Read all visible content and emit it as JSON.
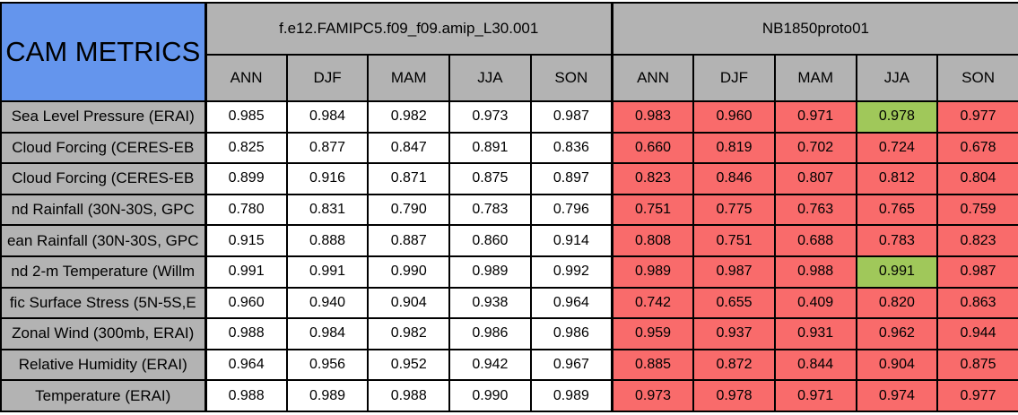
{
  "chart_data": {
    "type": "table",
    "title": "CAM METRICS",
    "models": [
      "f.e12.FAMIPC5.f09_f09.amip_L30.001",
      "NB1850proto01"
    ],
    "seasons": [
      "ANN",
      "DJF",
      "MAM",
      "JJA",
      "SON"
    ],
    "rows": [
      {
        "label": "Sea Level Pressure (ERAI)",
        "model1": [
          "0.985",
          "0.984",
          "0.982",
          "0.973",
          "0.987"
        ],
        "model2": [
          "0.983",
          "0.960",
          "0.971",
          "0.978",
          "0.977"
        ],
        "model2_green": [
          3
        ]
      },
      {
        "label": "Cloud Forcing (CERES-EB",
        "model1": [
          "0.825",
          "0.877",
          "0.847",
          "0.891",
          "0.836"
        ],
        "model2": [
          "0.660",
          "0.819",
          "0.702",
          "0.724",
          "0.678"
        ],
        "model2_green": []
      },
      {
        "label": "Cloud Forcing (CERES-EB",
        "model1": [
          "0.899",
          "0.916",
          "0.871",
          "0.875",
          "0.897"
        ],
        "model2": [
          "0.823",
          "0.846",
          "0.807",
          "0.812",
          "0.804"
        ],
        "model2_green": []
      },
      {
        "label": "nd Rainfall (30N-30S, GPC",
        "model1": [
          "0.780",
          "0.831",
          "0.790",
          "0.783",
          "0.796"
        ],
        "model2": [
          "0.751",
          "0.775",
          "0.763",
          "0.765",
          "0.759"
        ],
        "model2_green": []
      },
      {
        "label": "ean Rainfall (30N-30S, GPC",
        "model1": [
          "0.915",
          "0.888",
          "0.887",
          "0.860",
          "0.914"
        ],
        "model2": [
          "0.808",
          "0.751",
          "0.688",
          "0.783",
          "0.823"
        ],
        "model2_green": []
      },
      {
        "label": "nd 2-m Temperature (Willm",
        "model1": [
          "0.991",
          "0.991",
          "0.990",
          "0.989",
          "0.992"
        ],
        "model2": [
          "0.989",
          "0.987",
          "0.988",
          "0.991",
          "0.987"
        ],
        "model2_green": [
          3
        ]
      },
      {
        "label": "fic Surface Stress (5N-5S,E",
        "model1": [
          "0.960",
          "0.940",
          "0.904",
          "0.938",
          "0.964"
        ],
        "model2": [
          "0.742",
          "0.655",
          "0.409",
          "0.820",
          "0.863"
        ],
        "model2_green": []
      },
      {
        "label": "Zonal Wind (300mb, ERAI)",
        "model1": [
          "0.988",
          "0.984",
          "0.982",
          "0.986",
          "0.986"
        ],
        "model2": [
          "0.959",
          "0.937",
          "0.931",
          "0.962",
          "0.944"
        ],
        "model2_green": []
      },
      {
        "label": "Relative Humidity (ERAI)",
        "model1": [
          "0.964",
          "0.956",
          "0.952",
          "0.942",
          "0.967"
        ],
        "model2": [
          "0.885",
          "0.872",
          "0.844",
          "0.904",
          "0.875"
        ],
        "model2_green": []
      },
      {
        "label": "Temperature (ERAI)",
        "model1": [
          "0.988",
          "0.989",
          "0.988",
          "0.990",
          "0.989"
        ],
        "model2": [
          "0.973",
          "0.978",
          "0.971",
          "0.974",
          "0.977"
        ],
        "model2_green": []
      }
    ],
    "colors": {
      "title_bg": "#6495ED",
      "header_bg": "#B3B3B3",
      "red_cell": "#F96B6B",
      "green_cell": "#A0C85A",
      "border": "#000000"
    }
  }
}
